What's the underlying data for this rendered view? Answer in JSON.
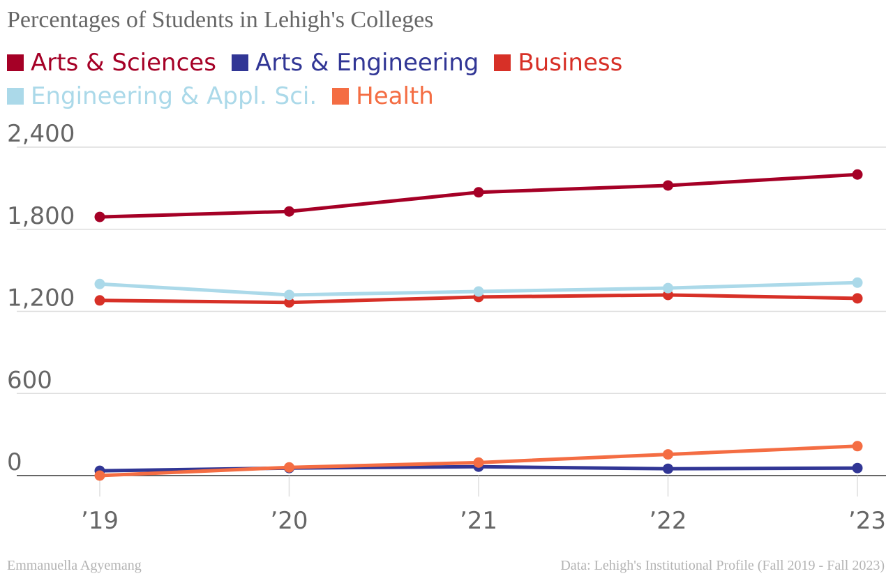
{
  "chart_data": {
    "type": "line",
    "title": "Percentages of Students in Lehigh's Colleges",
    "categories": [
      "’19",
      "’20",
      "’21",
      "’22",
      "’23"
    ],
    "ylim": [
      0,
      2400
    ],
    "yticks": [
      0,
      600,
      1200,
      1800,
      2400
    ],
    "ytick_labels": [
      "0",
      "600",
      "1,200",
      "1,800",
      "2,400"
    ],
    "grid": true,
    "legend_position": "top-left",
    "series": [
      {
        "name": "Arts & Sciences",
        "color": "#a50026",
        "values": [
          1890,
          1930,
          2070,
          2120,
          2200
        ]
      },
      {
        "name": "Arts & Engineering",
        "color": "#313695",
        "values": [
          35,
          55,
          65,
          50,
          55
        ]
      },
      {
        "name": "Business",
        "color": "#d73027",
        "values": [
          1280,
          1265,
          1305,
          1320,
          1295
        ]
      },
      {
        "name": "Engineering & Appl. Sci.",
        "color": "#abd9e9",
        "values": [
          1400,
          1320,
          1345,
          1370,
          1410
        ]
      },
      {
        "name": "Health",
        "color": "#f46d43",
        "values": [
          0,
          60,
          95,
          155,
          215
        ]
      }
    ]
  },
  "footer": {
    "author": "Emmanuella Agyemang",
    "source": "Data: Lehigh's Institutional Profile (Fall 2019 - Fall 2023)"
  }
}
